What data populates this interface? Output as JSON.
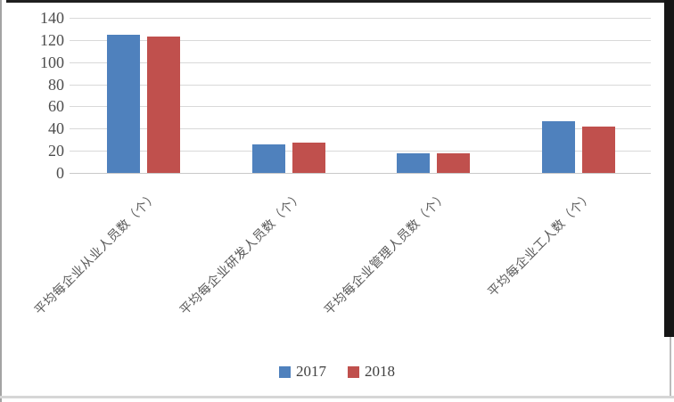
{
  "chart_data": {
    "type": "bar",
    "title": "",
    "categories": [
      "平均每企业从业人员数（个）",
      "平均每企业研发人员数（个）",
      "平均每企业管理人员数（个）",
      "平均每企业工人数（个）"
    ],
    "series": [
      {
        "name": "2017",
        "color": "#4F81BD",
        "values": [
          125,
          26,
          18,
          47
        ]
      },
      {
        "name": "2018",
        "color": "#C0504D",
        "values": [
          123,
          27,
          18,
          42
        ]
      }
    ],
    "xlabel": "",
    "ylabel": "",
    "ylim": [
      0,
      140
    ],
    "ytick_step": 20,
    "yticks": [
      0,
      20,
      40,
      60,
      80,
      100,
      120,
      140
    ],
    "grid": true,
    "gridline_color": "#D9D9D9",
    "tick_text_color": "#4D4D4D",
    "category_text_color": "#595959",
    "legend_position": "bottom",
    "legend_labels": [
      "2017",
      "2018"
    ]
  }
}
